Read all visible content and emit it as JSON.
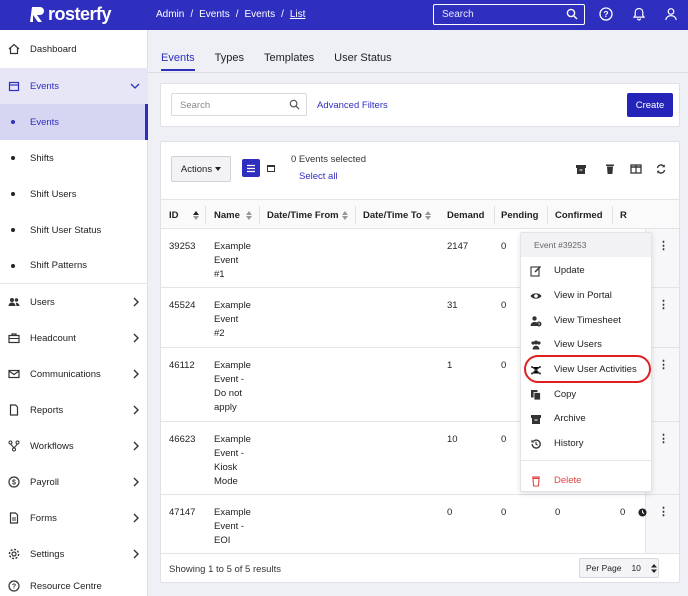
{
  "app": {
    "brand": "rosterfy"
  },
  "breadcrumb": [
    "Admin",
    "Events",
    "Events",
    "List"
  ],
  "search": {
    "placeholder": "Search"
  },
  "sidebar": {
    "items": [
      {
        "label": "Dashboard",
        "icon": "home-icon"
      },
      {
        "label": "Events",
        "icon": "calendar-icon",
        "expanded": true
      },
      {
        "label": "Events",
        "sub": true,
        "active": true
      },
      {
        "label": "Shifts",
        "sub": true
      },
      {
        "label": "Shift Users",
        "sub": true
      },
      {
        "label": "Shift User Status",
        "sub": true
      },
      {
        "label": "Shift Patterns",
        "sub": true
      },
      {
        "label": "Users",
        "icon": "users-icon"
      },
      {
        "label": "Headcount",
        "icon": "briefcase-icon"
      },
      {
        "label": "Communications",
        "icon": "mail-icon"
      },
      {
        "label": "Reports",
        "icon": "document-icon"
      },
      {
        "label": "Workflows",
        "icon": "workflow-icon"
      },
      {
        "label": "Payroll",
        "icon": "dollar-icon"
      },
      {
        "label": "Forms",
        "icon": "form-icon"
      },
      {
        "label": "Settings",
        "icon": "gear-icon"
      },
      {
        "label": "Resource Centre",
        "icon": "help-icon"
      }
    ]
  },
  "tabs": [
    "Events",
    "Types",
    "Templates",
    "User Status"
  ],
  "filters": {
    "search_placeholder": "Search",
    "advanced_label": "Advanced Filters",
    "create_label": "Create"
  },
  "table_toolbar": {
    "actions_label": "Actions",
    "selected_text": "0 Events selected",
    "select_all_label": "Select all"
  },
  "table": {
    "columns": [
      "ID",
      "Name",
      "Date/Time From",
      "Date/Time To",
      "Demand",
      "Pending",
      "Confirmed",
      "R"
    ],
    "rows": [
      {
        "id": "39253",
        "name": [
          "Example",
          "Event",
          "#1"
        ],
        "demand": "2147",
        "pending": "0",
        "confirmed": ""
      },
      {
        "id": "45524",
        "name": [
          "Example",
          "Event",
          "#2"
        ],
        "demand": "31",
        "pending": "0",
        "confirmed": ""
      },
      {
        "id": "46112",
        "name": [
          "Example",
          "Event -",
          "Do not",
          "apply"
        ],
        "demand": "1",
        "pending": "0",
        "confirmed": ""
      },
      {
        "id": "46623",
        "name": [
          "Example",
          "Event -",
          "Kiosk",
          "Mode"
        ],
        "demand": "10",
        "pending": "0",
        "confirmed": ""
      },
      {
        "id": "47147",
        "name": [
          "Example",
          "Event -",
          "EOI"
        ],
        "demand": "0",
        "pending": "0",
        "confirmed": "0",
        "r": "0"
      }
    ],
    "footer_text": "Showing 1 to 5 of 5 results",
    "per_page_label": "Per Page",
    "per_page_value": "10"
  },
  "context_menu": {
    "header": "Event #39253",
    "items": [
      {
        "label": "Update",
        "icon": "edit-icon"
      },
      {
        "label": "View in Portal",
        "icon": "eye-icon"
      },
      {
        "label": "View Timesheet",
        "icon": "user-clock-icon"
      },
      {
        "label": "View Users",
        "icon": "users-icon"
      },
      {
        "label": "View User Activities",
        "icon": "activity-icon",
        "highlighted": true
      },
      {
        "label": "Copy",
        "icon": "copy-icon"
      },
      {
        "label": "Archive",
        "icon": "archive-icon"
      },
      {
        "label": "History",
        "icon": "history-icon"
      },
      {
        "label": "Delete",
        "icon": "trash-icon",
        "danger": true
      }
    ]
  },
  "colors": {
    "brand": "#2f2fbf",
    "highlight_ring": "#e02020",
    "danger": "#e04545"
  }
}
